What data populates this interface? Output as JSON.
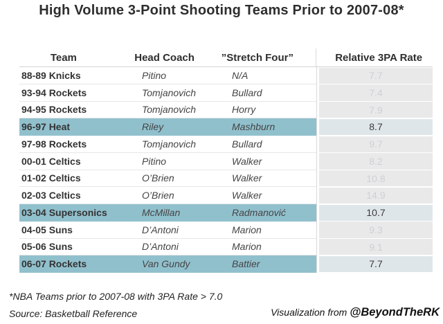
{
  "title": "High Volume 3-Point Shooting Teams Prior to 2007-08*",
  "chart_data": {
    "type": "table",
    "title": "High Volume 3-Point Shooting Teams Prior to 2007-08*",
    "columns": [
      "Team",
      "Head Coach",
      "”Stretch Four”",
      "Relative 3PA Rate"
    ],
    "rows": [
      {
        "team": "88-89 Knicks",
        "coach": "Pitino",
        "stretch_four": "N/A",
        "rate": 7.7,
        "highlighted": false
      },
      {
        "team": "93-94 Rockets",
        "coach": "Tomjanovich",
        "stretch_four": "Bullard",
        "rate": 7.4,
        "highlighted": false
      },
      {
        "team": "94-95 Rockets",
        "coach": "Tomjanovich",
        "stretch_four": "Horry",
        "rate": 7.9,
        "highlighted": false
      },
      {
        "team": "96-97 Heat",
        "coach": "Riley",
        "stretch_four": "Mashburn",
        "rate": 8.7,
        "highlighted": true
      },
      {
        "team": "97-98 Rockets",
        "coach": "Tomjanovich",
        "stretch_four": "Bullard",
        "rate": 9.7,
        "highlighted": false
      },
      {
        "team": "00-01 Celtics",
        "coach": "Pitino",
        "stretch_four": "Walker",
        "rate": 8.2,
        "highlighted": false
      },
      {
        "team": "01-02 Celtics",
        "coach": "O’Brien",
        "stretch_four": "Walker",
        "rate": 10.8,
        "highlighted": false
      },
      {
        "team": "02-03 Celtics",
        "coach": "O’Brien",
        "stretch_four": "Walker",
        "rate": 14.9,
        "highlighted": false
      },
      {
        "team": "03-04 Supersonics",
        "coach": "McMillan",
        "stretch_four": "Radmanović",
        "rate": 10.7,
        "highlighted": true
      },
      {
        "team": "04-05 Suns",
        "coach": "D’Antoni",
        "stretch_four": "Marion",
        "rate": 9.3,
        "highlighted": false
      },
      {
        "team": "05-06 Suns",
        "coach": "D’Antoni",
        "stretch_four": "Marion",
        "rate": 9.1,
        "highlighted": false
      },
      {
        "team": "06-07 Rockets",
        "coach": "Van Gundy",
        "stretch_four": "Battier",
        "rate": 7.7,
        "highlighted": true
      }
    ]
  },
  "footnotes": {
    "note": "*NBA Teams prior to 2007-08 with 3PA Rate > 7.0",
    "source": "Source: Basketball Reference",
    "credit_prefix": "Visualization from ",
    "credit_handle": "@BeyondTheRK"
  },
  "colors": {
    "highlight_row": "#91c0cd",
    "rate_cell_default_bg": "#e9e9e9",
    "rate_cell_highlight_bg": "#dfe6ea",
    "rate_text_faded": "#ccd1d5",
    "rate_text_dark": "#3b3b3b"
  }
}
